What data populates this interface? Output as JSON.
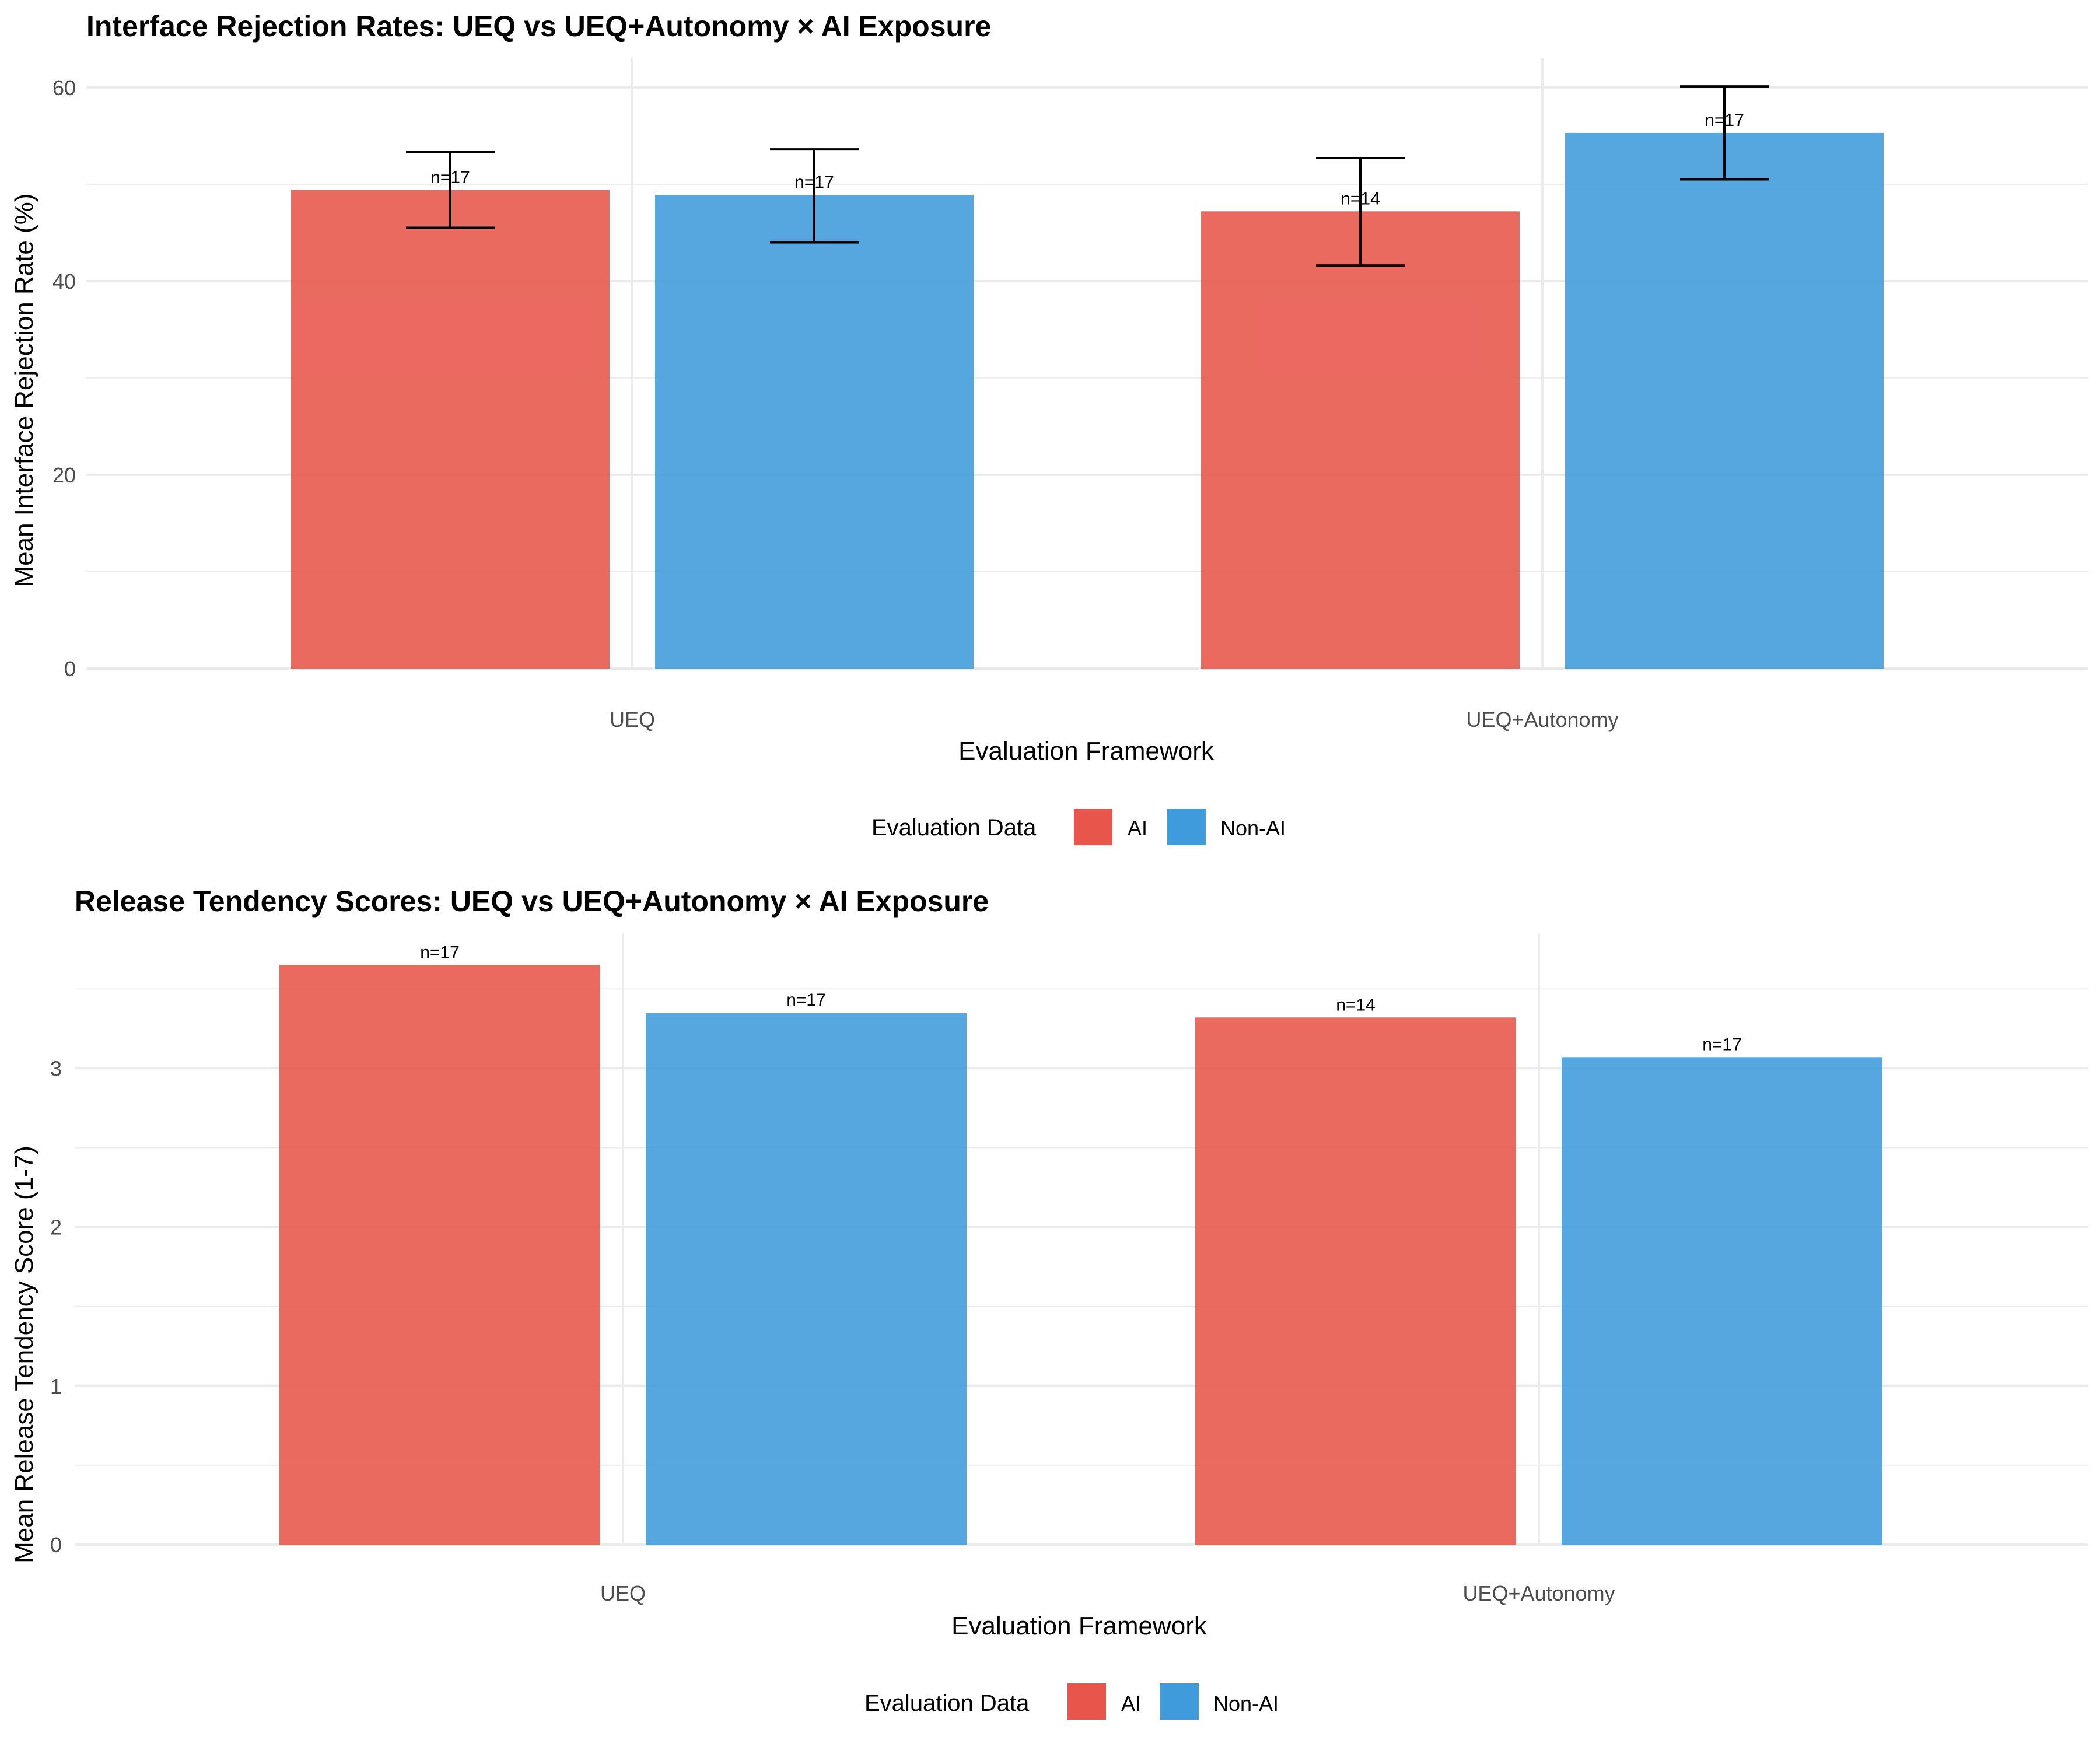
{
  "legend": {
    "title": "Evaluation Data",
    "items": [
      {
        "label": "AI",
        "color": "#e8554a"
      },
      {
        "label": "Non-AI",
        "color": "#3f9bdc"
      }
    ]
  },
  "chart_data": [
    {
      "type": "bar",
      "title": "Interface Rejection Rates: UEQ vs UEQ+Autonomy × AI Exposure",
      "xlabel": "Evaluation Framework",
      "ylabel": "Mean Interface Rejection Rate (%)",
      "categories": [
        "UEQ",
        "UEQ+Autonomy"
      ],
      "ylim": [
        0,
        63
      ],
      "yticks": [
        0,
        20,
        40,
        60
      ],
      "grid": true,
      "legend_position": "bottom",
      "series": [
        {
          "name": "AI",
          "values": [
            49.4,
            47.2
          ],
          "error_low": [
            45.5,
            41.6
          ],
          "error_high": [
            53.3,
            52.7
          ],
          "n_labels": [
            "n=17",
            "n=14"
          ]
        },
        {
          "name": "Non-AI",
          "values": [
            48.9,
            55.3
          ],
          "error_low": [
            44.0,
            50.5
          ],
          "error_high": [
            53.6,
            60.1
          ],
          "n_labels": [
            "n=17",
            "n=17"
          ]
        }
      ]
    },
    {
      "type": "bar",
      "title": "Release Tendency Scores: UEQ vs UEQ+Autonomy × AI Exposure",
      "xlabel": "Evaluation Framework",
      "ylabel": "Mean Release Tendency Score (1-7)",
      "categories": [
        "UEQ",
        "UEQ+Autonomy"
      ],
      "ylim": [
        0,
        3.85
      ],
      "yticks": [
        0,
        1,
        2,
        3
      ],
      "grid": true,
      "legend_position": "bottom",
      "series": [
        {
          "name": "AI",
          "values": [
            3.65,
            3.32
          ],
          "n_labels": [
            "n=17",
            "n=14"
          ]
        },
        {
          "name": "Non-AI",
          "values": [
            3.35,
            3.07
          ],
          "n_labels": [
            "n=17",
            "n=17"
          ]
        }
      ]
    }
  ]
}
